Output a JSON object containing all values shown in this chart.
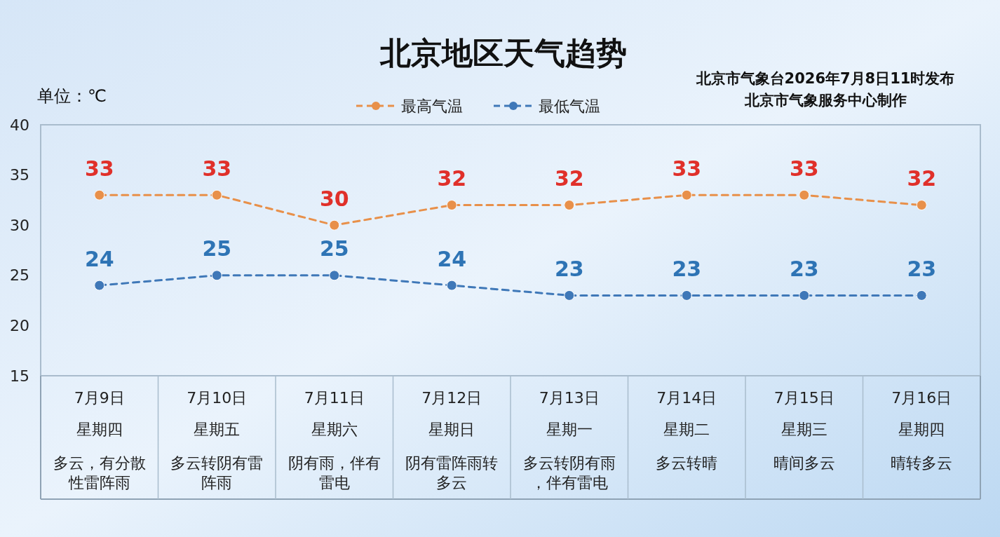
{
  "chart_data": {
    "type": "line",
    "title": "北京地区天气趋势",
    "annotations": [
      "单位：℃",
      "北京市气象台2026年7月8日11时发布",
      "北京市气象服务中心制作",
      "星期四",
      "星期五",
      "星期六",
      "星期日",
      "星期一",
      "星期二",
      "星期三",
      "星期四",
      "多云，有分散性雷阵雨",
      "多云转阴有雷阵雨",
      "阴有雨，伴有雷电",
      "阴有雷阵雨转多云",
      "多云转阴有雨，伴有雷电",
      "多云转晴",
      "晴间多云",
      "晴转多云"
    ],
    "categories": [
      "7月9日",
      "7月10日",
      "7月11日",
      "7月12日",
      "7月13日",
      "7月14日",
      "7月15日",
      "7月16日"
    ],
    "series": [
      {
        "name": "最高气温",
        "color": "#e8904a",
        "values": [
          33,
          33,
          30,
          32,
          32,
          33,
          33,
          32
        ]
      },
      {
        "name": "最低气温",
        "color": "#3f78b8",
        "values": [
          24,
          25,
          25,
          24,
          23,
          23,
          23,
          23
        ]
      }
    ],
    "ylim": [
      15,
      40
    ],
    "yticks": [
      15,
      20,
      25,
      30,
      35,
      40
    ],
    "legend": "top",
    "marker": "circle",
    "line_style": "dashed",
    "data_labels": true
  }
}
